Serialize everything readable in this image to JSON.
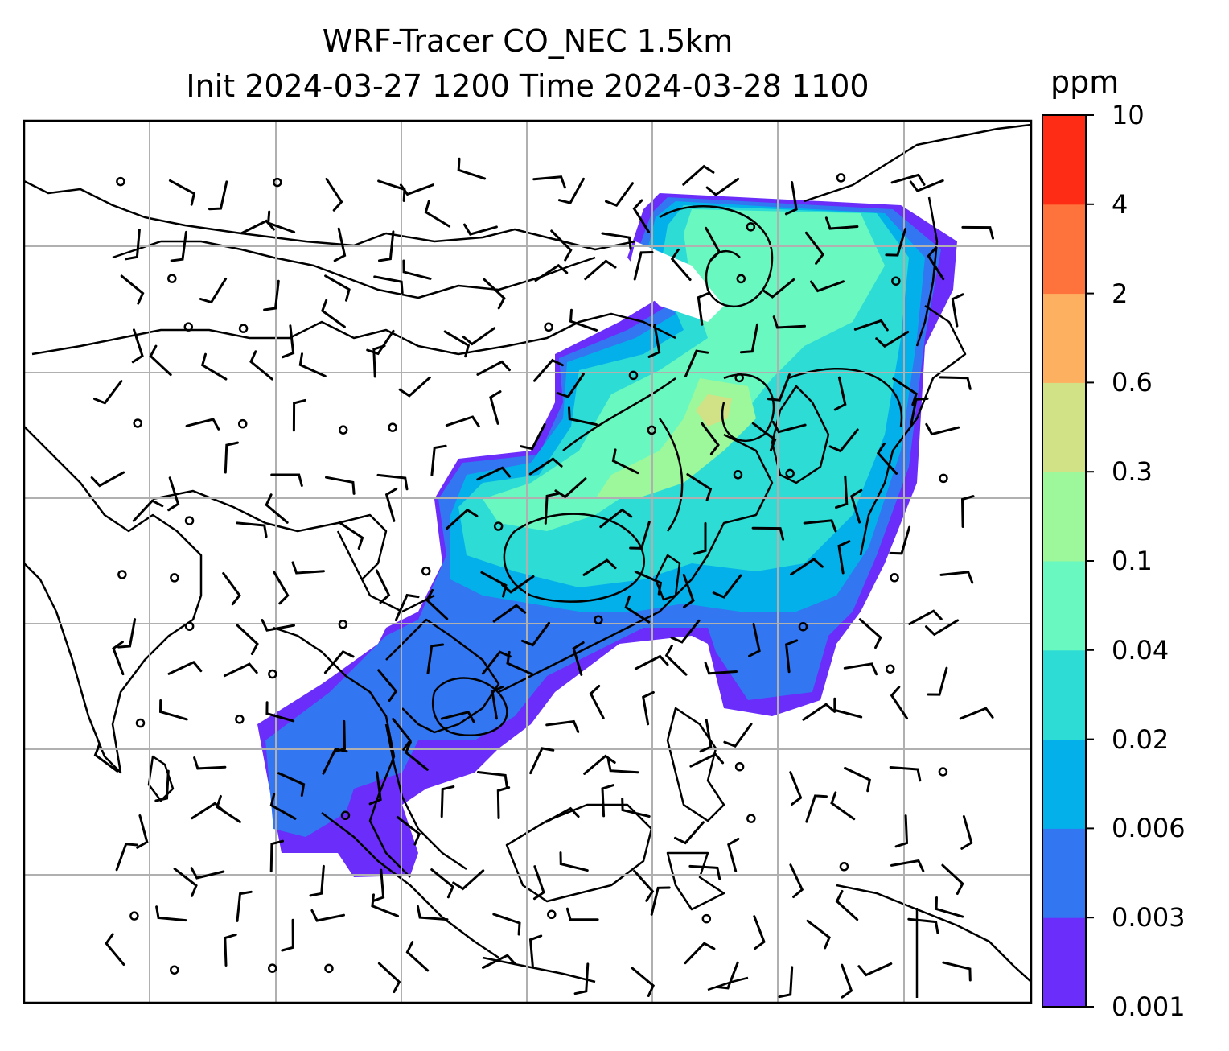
{
  "title": {
    "line1": "WRF-Tracer CO_NEC 1.5km",
    "line2": "Init 2024-03-27 1200 Time 2024-03-28 1100"
  },
  "colorbar": {
    "unit": "ppm",
    "ticks": [
      "10",
      "4",
      "2",
      "0.6",
      "0.3",
      "0.1",
      "0.04",
      "0.02",
      "0.006",
      "0.003",
      "0.001"
    ],
    "colors": [
      "#6a2dfa",
      "#3276f1",
      "#04b0ea",
      "#2ddcd5",
      "#69f8c0",
      "#9cf89a",
      "#d1e185",
      "#feb061",
      "#fe733c",
      "#fe2c15"
    ]
  },
  "map": {
    "grid": "on",
    "features": [
      "coastlines",
      "country borders",
      "wind barbs",
      "tracer concentration filled contours",
      "contour lines"
    ]
  }
}
